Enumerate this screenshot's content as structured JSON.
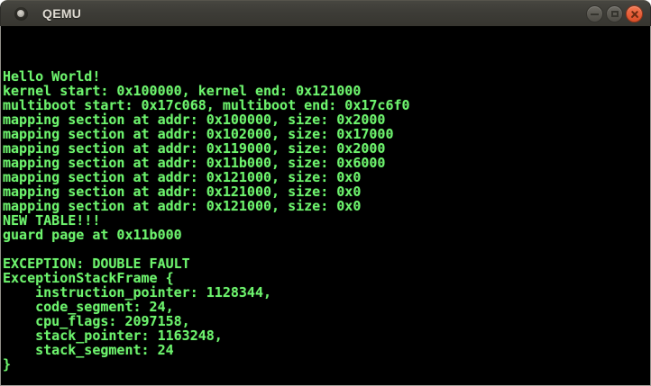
{
  "titlebar": {
    "title": "QEMU",
    "app_icon": "qemu-app-icon",
    "buttons": [
      {
        "name": "minimize",
        "icon": "minus-icon"
      },
      {
        "name": "maximize",
        "icon": "square-outline-icon"
      },
      {
        "name": "close",
        "icon": "cross-icon"
      }
    ]
  },
  "colors": {
    "titlebar_bg": "#3d3c37",
    "titlebar_text": "#dfdbd2",
    "window_button_gray": "#5c5a53",
    "close_button_orange": "#e8603b",
    "terminal_bg": "#000000",
    "terminal_green": "#6df36d"
  },
  "terminal": {
    "lines": [
      "",
      "",
      "",
      "Hello World!",
      "kernel start: 0x100000, kernel end: 0x121000",
      "multiboot start: 0x17c068, multiboot end: 0x17c6f0",
      "mapping section at addr: 0x100000, size: 0x2000",
      "mapping section at addr: 0x102000, size: 0x17000",
      "mapping section at addr: 0x119000, size: 0x2000",
      "mapping section at addr: 0x11b000, size: 0x6000",
      "mapping section at addr: 0x121000, size: 0x0",
      "mapping section at addr: 0x121000, size: 0x0",
      "mapping section at addr: 0x121000, size: 0x0",
      "NEW TABLE!!!",
      "guard page at 0x11b000",
      "",
      "EXCEPTION: DOUBLE FAULT",
      "ExceptionStackFrame {",
      "    instruction_pointer: 1128344,",
      "    code_segment: 24,",
      "    cpu_flags: 2097158,",
      "    stack_pointer: 1163248,",
      "    stack_segment: 24",
      "}"
    ]
  }
}
